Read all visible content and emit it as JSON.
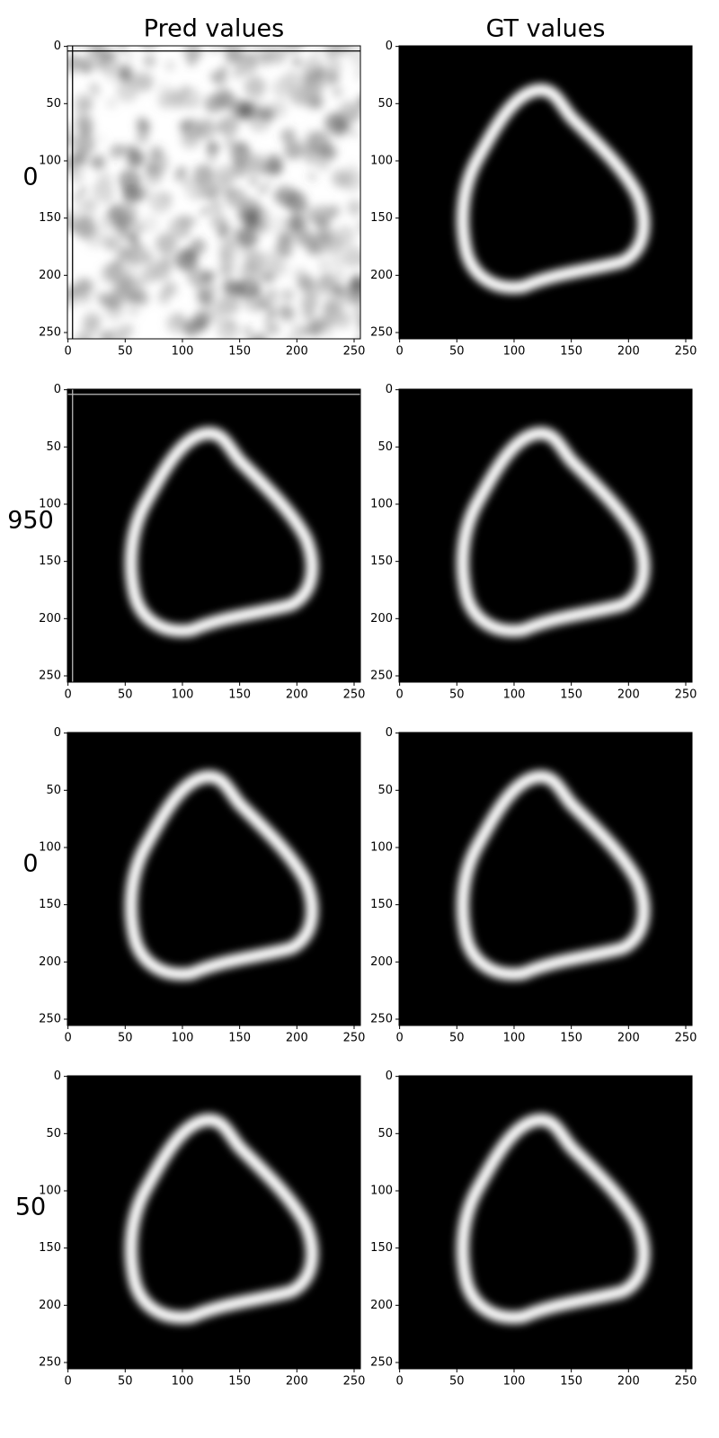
{
  "column_titles": [
    "Pred values",
    "GT values"
  ],
  "row_labels": [
    "0",
    "950",
    "0",
    "50"
  ],
  "chart_data": [
    {
      "type": "image",
      "image": "noise",
      "colormap": "gray",
      "xlim": [
        -0.5,
        255.5
      ],
      "ylim": [
        255.5,
        -0.5
      ],
      "xticks": [
        0,
        50,
        100,
        150,
        200,
        250
      ],
      "yticks": [
        0,
        50,
        100,
        150,
        200,
        250
      ]
    },
    {
      "type": "image",
      "image": "ring",
      "colormap": "gray",
      "xlim": [
        -0.5,
        255.5
      ],
      "ylim": [
        255.5,
        -0.5
      ],
      "xticks": [
        0,
        50,
        100,
        150,
        200,
        250
      ],
      "yticks": [
        0,
        50,
        100,
        150,
        200,
        250
      ]
    },
    {
      "type": "image",
      "image": "ring",
      "colormap": "gray",
      "xlim": [
        -0.5,
        255.5
      ],
      "ylim": [
        255.5,
        -0.5
      ],
      "xticks": [
        0,
        50,
        100,
        150,
        200,
        250
      ],
      "yticks": [
        0,
        50,
        100,
        150,
        200,
        250
      ]
    },
    {
      "type": "image",
      "image": "ring",
      "colormap": "gray",
      "xlim": [
        -0.5,
        255.5
      ],
      "ylim": [
        255.5,
        -0.5
      ],
      "xticks": [
        0,
        50,
        100,
        150,
        200,
        250
      ],
      "yticks": [
        0,
        50,
        100,
        150,
        200,
        250
      ]
    },
    {
      "type": "image",
      "image": "ring",
      "colormap": "gray",
      "xlim": [
        -0.5,
        255.5
      ],
      "ylim": [
        255.5,
        -0.5
      ],
      "xticks": [
        0,
        50,
        100,
        150,
        200,
        250
      ],
      "yticks": [
        0,
        50,
        100,
        150,
        200,
        250
      ]
    },
    {
      "type": "image",
      "image": "ring",
      "colormap": "gray",
      "xlim": [
        -0.5,
        255.5
      ],
      "ylim": [
        255.5,
        -0.5
      ],
      "xticks": [
        0,
        50,
        100,
        150,
        200,
        250
      ],
      "yticks": [
        0,
        50,
        100,
        150,
        200,
        250
      ]
    },
    {
      "type": "image",
      "image": "ring",
      "colormap": "gray",
      "xlim": [
        -0.5,
        255.5
      ],
      "ylim": [
        255.5,
        -0.5
      ],
      "xticks": [
        0,
        50,
        100,
        150,
        200,
        250
      ],
      "yticks": [
        0,
        50,
        100,
        150,
        200,
        250
      ]
    },
    {
      "type": "image",
      "image": "ring",
      "colormap": "gray",
      "xlim": [
        -0.5,
        255.5
      ],
      "ylim": [
        255.5,
        -0.5
      ],
      "xticks": [
        0,
        50,
        100,
        150,
        200,
        250
      ],
      "yticks": [
        0,
        50,
        100,
        150,
        200,
        250
      ]
    }
  ]
}
